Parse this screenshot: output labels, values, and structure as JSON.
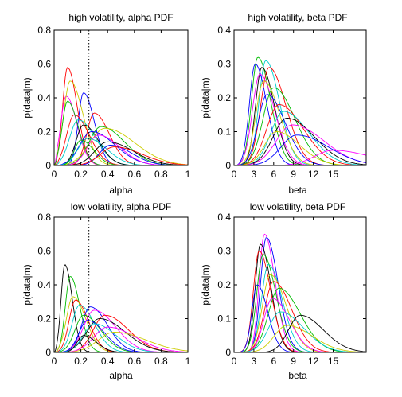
{
  "chart_data": [
    {
      "type": "line",
      "title": "high volatility, alpha PDF",
      "xlabel": "alpha",
      "ylabel": "p(data|m)",
      "xlim": [
        0,
        1
      ],
      "ylim": [
        0,
        0.8
      ],
      "xticks": [
        0,
        0.2,
        0.4,
        0.6,
        0.8,
        1
      ],
      "xtick_labels": [
        "0",
        "0.2",
        "0.4",
        "0.6",
        "0.8",
        "1"
      ],
      "yticks": [
        0,
        0.2,
        0.4,
        0.6,
        0.8
      ],
      "ytick_labels": [
        "0",
        "0.2",
        "0.4",
        "0.6",
        "0.8"
      ],
      "reference_line": 0.26,
      "series": [
        {
          "color": "#ff0000",
          "peak": 0.1,
          "height": 0.58,
          "width": 0.045
        },
        {
          "color": "#ff00ff",
          "peak": 0.09,
          "height": 0.41,
          "width": 0.05
        },
        {
          "color": "#cccc00",
          "peak": 0.12,
          "height": 0.5,
          "width": 0.06
        },
        {
          "color": "#0000ff",
          "peak": 0.22,
          "height": 0.43,
          "width": 0.05
        },
        {
          "color": "#00bb00",
          "peak": 0.1,
          "height": 0.38,
          "width": 0.05
        },
        {
          "color": "#ff0000",
          "peak": 0.15,
          "height": 0.3,
          "width": 0.07
        },
        {
          "color": "#00cccc",
          "peak": 0.18,
          "height": 0.27,
          "width": 0.08
        },
        {
          "color": "#000000",
          "peak": 0.22,
          "height": 0.24,
          "width": 0.07
        },
        {
          "color": "#ff0000",
          "peak": 0.3,
          "height": 0.31,
          "width": 0.07
        },
        {
          "color": "#00bb00",
          "peak": 0.35,
          "height": 0.23,
          "width": 0.11
        },
        {
          "color": "#cccc00",
          "peak": 0.38,
          "height": 0.22,
          "width": 0.14
        },
        {
          "color": "#0000ff",
          "peak": 0.28,
          "height": 0.2,
          "width": 0.11
        },
        {
          "color": "#ff00ff",
          "peak": 0.33,
          "height": 0.18,
          "width": 0.1
        },
        {
          "color": "#00cccc",
          "peak": 0.25,
          "height": 0.16,
          "width": 0.09
        },
        {
          "color": "#000000",
          "peak": 0.4,
          "height": 0.14,
          "width": 0.12
        },
        {
          "color": "#00bb00",
          "peak": 0.2,
          "height": 0.15,
          "width": 0.06
        },
        {
          "color": "#0000ff",
          "peak": 0.42,
          "height": 0.12,
          "width": 0.1
        },
        {
          "color": "#ff0000",
          "peak": 0.45,
          "height": 0.11,
          "width": 0.13
        }
      ]
    },
    {
      "type": "line",
      "title": "high volatility, beta PDF",
      "xlabel": "beta",
      "ylabel": "p(data|m)",
      "xlim": [
        0,
        20
      ],
      "ylim": [
        0,
        0.4
      ],
      "xticks": [
        0,
        3,
        6,
        9,
        12,
        15
      ],
      "xtick_labels": [
        "0",
        "3",
        "6",
        "9",
        "12",
        "15"
      ],
      "yticks": [
        0,
        0.1,
        0.2,
        0.3,
        0.4
      ],
      "ytick_labels": [
        "0",
        "0.1",
        "0.2",
        "0.3",
        "0.4"
      ],
      "reference_line": 5,
      "series": [
        {
          "color": "#00bb00",
          "peak": 3.6,
          "height": 0.32,
          "width": 1.2
        },
        {
          "color": "#00cccc",
          "peak": 4.8,
          "height": 0.31,
          "width": 1.3
        },
        {
          "color": "#0000ff",
          "peak": 3.2,
          "height": 0.3,
          "width": 1.1
        },
        {
          "color": "#000000",
          "peak": 4.2,
          "height": 0.29,
          "width": 1.2
        },
        {
          "color": "#ff0000",
          "peak": 5.3,
          "height": 0.29,
          "width": 1.6
        },
        {
          "color": "#ff00ff",
          "peak": 3.9,
          "height": 0.27,
          "width": 1.4
        },
        {
          "color": "#cccc00",
          "peak": 4.5,
          "height": 0.25,
          "width": 1.5
        },
        {
          "color": "#00bb00",
          "peak": 6.0,
          "height": 0.23,
          "width": 2.0
        },
        {
          "color": "#0000ff",
          "peak": 5.0,
          "height": 0.21,
          "width": 1.7
        },
        {
          "color": "#ff0000",
          "peak": 6.8,
          "height": 0.18,
          "width": 2.3
        },
        {
          "color": "#00cccc",
          "peak": 7.5,
          "height": 0.16,
          "width": 2.4
        },
        {
          "color": "#000000",
          "peak": 8.0,
          "height": 0.14,
          "width": 2.6
        },
        {
          "color": "#ff00ff",
          "peak": 8.8,
          "height": 0.12,
          "width": 3.0
        },
        {
          "color": "#cccc00",
          "peak": 6.4,
          "height": 0.1,
          "width": 2.2
        },
        {
          "color": "#ff00ff",
          "peak": 15.0,
          "height": 0.045,
          "width": 3.5
        },
        {
          "color": "#0000ff",
          "peak": 9.5,
          "height": 0.09,
          "width": 3.0
        }
      ]
    },
    {
      "type": "line",
      "title": "low volatility, alpha PDF",
      "xlabel": "alpha",
      "ylabel": "p(data|m)",
      "xlim": [
        0,
        1
      ],
      "ylim": [
        0,
        0.8
      ],
      "xticks": [
        0,
        0.2,
        0.4,
        0.6,
        0.8,
        1
      ],
      "xtick_labels": [
        "0",
        "0.2",
        "0.4",
        "0.6",
        "0.8",
        "1"
      ],
      "yticks": [
        0,
        0.2,
        0.4,
        0.6,
        0.8
      ],
      "ytick_labels": [
        "0",
        "0.2",
        "0.4",
        "0.6",
        "0.8"
      ],
      "reference_line": 0.26,
      "series": [
        {
          "color": "#000000",
          "peak": 0.08,
          "height": 0.52,
          "width": 0.035
        },
        {
          "color": "#00bb00",
          "peak": 0.12,
          "height": 0.45,
          "width": 0.045
        },
        {
          "color": "#cccc00",
          "peak": 0.14,
          "height": 0.33,
          "width": 0.06
        },
        {
          "color": "#ff0000",
          "peak": 0.16,
          "height": 0.31,
          "width": 0.06
        },
        {
          "color": "#00cccc",
          "peak": 0.19,
          "height": 0.28,
          "width": 0.07
        },
        {
          "color": "#0000ff",
          "peak": 0.27,
          "height": 0.27,
          "width": 0.08
        },
        {
          "color": "#ff00ff",
          "peak": 0.3,
          "height": 0.25,
          "width": 0.1
        },
        {
          "color": "#ff0000",
          "peak": 0.38,
          "height": 0.22,
          "width": 0.11
        },
        {
          "color": "#00bb00",
          "peak": 0.22,
          "height": 0.22,
          "width": 0.08
        },
        {
          "color": "#000000",
          "peak": 0.34,
          "height": 0.2,
          "width": 0.12
        },
        {
          "color": "#0000ff",
          "peak": 0.25,
          "height": 0.19,
          "width": 0.08
        },
        {
          "color": "#00cccc",
          "peak": 0.3,
          "height": 0.17,
          "width": 0.1
        },
        {
          "color": "#ff00ff",
          "peak": 0.4,
          "height": 0.15,
          "width": 0.13
        },
        {
          "color": "#cccc00",
          "peak": 0.45,
          "height": 0.12,
          "width": 0.15
        },
        {
          "color": "#000000",
          "peak": 0.22,
          "height": 0.1,
          "width": 0.06
        }
      ]
    },
    {
      "type": "line",
      "title": "low volatility, beta PDF",
      "xlabel": "beta",
      "ylabel": "p(data|m)",
      "xlim": [
        0,
        20
      ],
      "ylim": [
        0,
        0.4
      ],
      "xticks": [
        0,
        3,
        6,
        9,
        12,
        15
      ],
      "xtick_labels": [
        "0",
        "3",
        "6",
        "9",
        "12",
        "15"
      ],
      "yticks": [
        0,
        0.1,
        0.2,
        0.3,
        0.4
      ],
      "ytick_labels": [
        "0",
        "0.1",
        "0.2",
        "0.3",
        "0.4"
      ],
      "reference_line": 5,
      "series": [
        {
          "color": "#ff00ff",
          "peak": 4.6,
          "height": 0.35,
          "width": 1.0
        },
        {
          "color": "#0000ff",
          "peak": 4.9,
          "height": 0.34,
          "width": 1.1
        },
        {
          "color": "#000000",
          "peak": 4.0,
          "height": 0.32,
          "width": 1.0
        },
        {
          "color": "#ff0000",
          "peak": 3.8,
          "height": 0.3,
          "width": 1.1
        },
        {
          "color": "#00bb00",
          "peak": 4.4,
          "height": 0.29,
          "width": 1.2
        },
        {
          "color": "#00cccc",
          "peak": 5.2,
          "height": 0.26,
          "width": 1.3
        },
        {
          "color": "#cccc00",
          "peak": 5.5,
          "height": 0.23,
          "width": 1.5
        },
        {
          "color": "#ff0000",
          "peak": 6.0,
          "height": 0.21,
          "width": 1.7
        },
        {
          "color": "#00bb00",
          "peak": 6.8,
          "height": 0.19,
          "width": 2.0
        },
        {
          "color": "#0000ff",
          "peak": 3.5,
          "height": 0.2,
          "width": 1.0
        },
        {
          "color": "#ff00ff",
          "peak": 5.8,
          "height": 0.16,
          "width": 1.6
        },
        {
          "color": "#000000",
          "peak": 10.0,
          "height": 0.11,
          "width": 2.2
        },
        {
          "color": "#00cccc",
          "peak": 7.0,
          "height": 0.12,
          "width": 2.2
        },
        {
          "color": "#cccc00",
          "peak": 8.0,
          "height": 0.08,
          "width": 2.4
        }
      ]
    }
  ]
}
